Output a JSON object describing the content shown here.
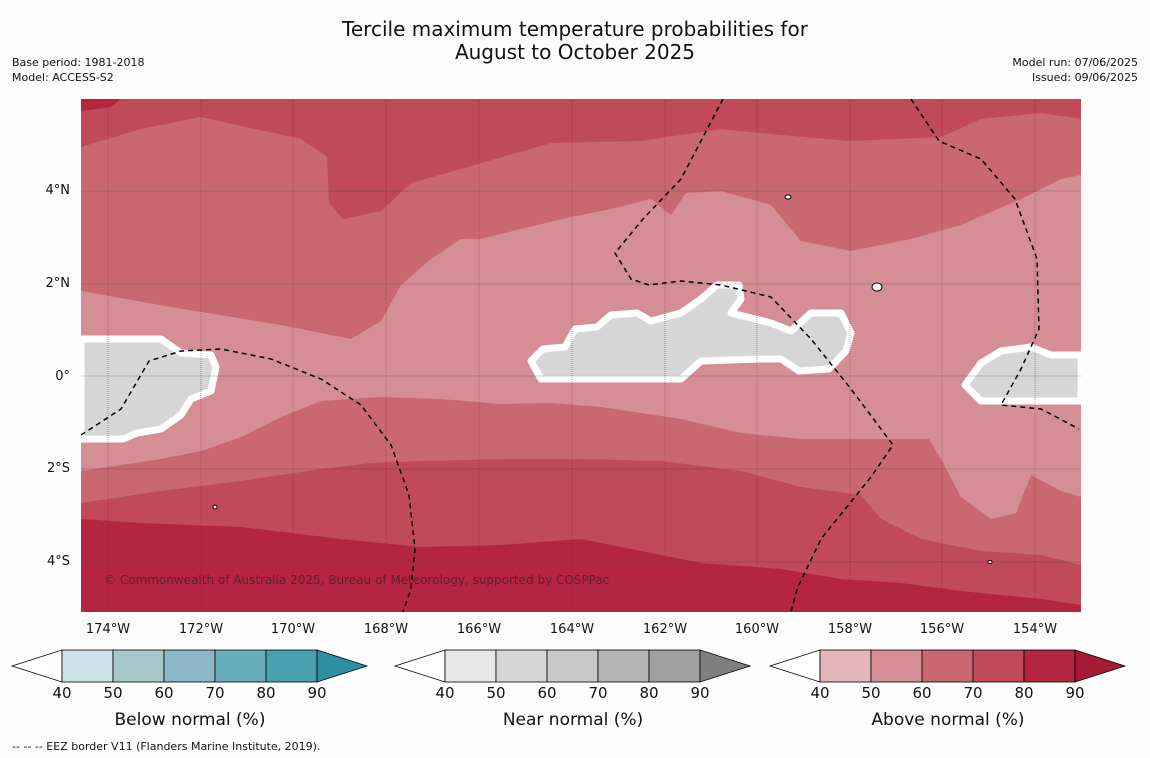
{
  "title_line1": "Tercile maximum temperature probabilities for",
  "title_line2": "August to October 2025",
  "meta_left": {
    "base_period": "Base period: 1981-2018",
    "model": "Model: ACCESS-S2"
  },
  "meta_right": {
    "model_run": "Model run: 07/06/2025",
    "issued": "Issued: 09/06/2025"
  },
  "map": {
    "lat_labels": [
      "4°N",
      "2°N",
      "0°",
      "2°S",
      "4°S"
    ],
    "lon_labels": [
      "174°W",
      "172°W",
      "170°W",
      "168°W",
      "166°W",
      "164°W",
      "162°W",
      "160°W",
      "158°W",
      "156°W",
      "154°W"
    ],
    "copyright": "© Commonwealth of Australia 2025, Bureau of Meteorology, supported by COSPPac",
    "colors": {
      "above_50": "#d68e96",
      "above_60": "#c9686f",
      "above_70": "#c04a57",
      "above_80": "#b42640",
      "near_normal": "#d6d6d6",
      "outline": "#ffffff",
      "eez_border": "#000000"
    }
  },
  "legends": [
    {
      "title": "Below normal (%)",
      "ticks": [
        "40",
        "50",
        "60",
        "70",
        "80",
        "90"
      ],
      "colors": [
        "#ffffff",
        "#cae2e8",
        "#a9c8cc",
        "#8bb7c6",
        "#6aaebb",
        "#489fae",
        "#2e8fa3"
      ]
    },
    {
      "title": "Near normal (%)",
      "ticks": [
        "40",
        "50",
        "60",
        "70",
        "80",
        "90"
      ],
      "colors": [
        "#ffffff",
        "#e6e6e6",
        "#d6d6d6",
        "#c8c8c8",
        "#b5b5b5",
        "#a0a0a0",
        "#7f7f7f"
      ]
    },
    {
      "title": "Above normal (%)",
      "ticks": [
        "40",
        "50",
        "60",
        "70",
        "80",
        "90"
      ],
      "colors": [
        "#ffffff",
        "#e3b6ba",
        "#d68e96",
        "#c9686f",
        "#c04a57",
        "#b42640",
        "#a61a35"
      ]
    }
  ],
  "footnote": "-- -- -- EEZ border V11 (Flanders Marine Institute, 2019)."
}
